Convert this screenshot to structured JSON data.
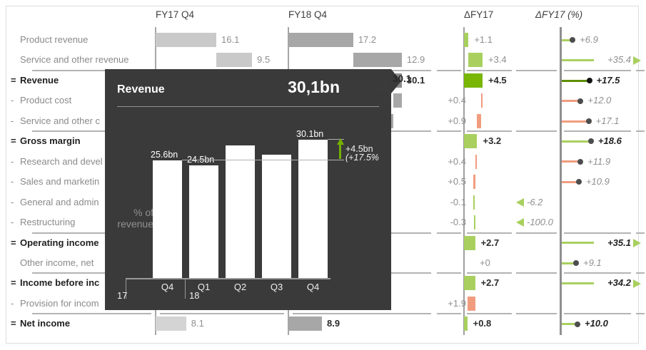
{
  "colors": {
    "light_green": "#a9d05f",
    "green_total": "#79b606",
    "dark_olive_pin": "#5e8f03",
    "salmon": "#f19c7e",
    "fy17_bar": "#c9c9c9",
    "fy17_total_bar": "#d4d4d4",
    "fy18_bar": "#a7a7a7",
    "fy18_highlight_bar": "#8c8c8c",
    "dot_gray": "#4d4d4d",
    "dot_black": "#141414",
    "arrow_green": "#76b000"
  },
  "header": {
    "fy17": "FY17 Q4",
    "fy18": "FY18 Q4",
    "delta": "ΔFY17",
    "delta_pct": "ΔFY17 (%)"
  },
  "chart_data": [
    {
      "type": "table",
      "title": "Income statement variance table (FY18 Q4 vs FY17 Q4, bn)",
      "columns": [
        "FY17 Q4",
        "FY18 Q4",
        "ΔFY17",
        "ΔFY17 (%)"
      ],
      "rows": [
        {
          "label": "Product revenue",
          "prefix": "",
          "total": false,
          "separator_above": false,
          "fy17": {
            "value": "16.1",
            "bar": [
              0,
              16.1
            ]
          },
          "fy18": {
            "value": "17.2",
            "bar": [
              0,
              17.2
            ]
          },
          "delta": {
            "value": "+1.1",
            "num": 1.1,
            "bar": [
              0,
              1.1
            ],
            "color": "light_green",
            "label_side": "right"
          },
          "pct": {
            "value": "+6.9",
            "num": 6.9,
            "style": "pin",
            "color": "light_green",
            "dot": "dot_gray"
          }
        },
        {
          "label": "Service and other revenue",
          "prefix": "",
          "total": false,
          "separator_above": false,
          "fy17": {
            "value": "9.5",
            "bar": [
              16.1,
              25.6
            ]
          },
          "fy18": {
            "value": "12.9",
            "bar": [
              17.2,
              30.1
            ]
          },
          "delta": {
            "value": "+3.4",
            "num": 3.4,
            "bar": [
              1.1,
              4.5
            ],
            "color": "light_green",
            "label_side": "right"
          },
          "pct": {
            "value": "+35.4",
            "num": 35.4,
            "style": "pin-clipped",
            "color": "light_green"
          }
        },
        {
          "label": "Revenue",
          "prefix": "=",
          "total": true,
          "separator_above": true,
          "fy17": {
            "value": "25.6",
            "bar": [
              0,
              25.6
            ]
          },
          "fy18": {
            "value": "30.1",
            "bar": [
              0,
              30.1
            ],
            "highlight": true,
            "bold": true
          },
          "delta": {
            "value": "+4.5",
            "num": 4.5,
            "bar": [
              0,
              4.5
            ],
            "color": "green_total",
            "label_side": "right",
            "bold": true
          },
          "pct": {
            "value": "+17.5",
            "num": 17.5,
            "style": "pin",
            "color": "dark_olive_pin",
            "dot": "dot_black",
            "bold": true
          }
        },
        {
          "label": "Product cost",
          "prefix": "-",
          "total": false,
          "separator_above": false,
          "fy17": null,
          "fy18": {
            "value": null,
            "bar": [
              27.8,
              30.1
            ]
          },
          "delta": {
            "value": "+0.4",
            "num": 0.4,
            "bar": [
              4.1,
              4.5
            ],
            "color": "salmon",
            "label_side": "left"
          },
          "pct": {
            "value": "+12.0",
            "num": 12.0,
            "style": "pin",
            "color": "salmon",
            "dot": "dot_gray"
          }
        },
        {
          "label": "Service and other c",
          "prefix": "-",
          "total": false,
          "separator_above": false,
          "fy17": null,
          "fy18": {
            "value": null,
            "bar": [
              20.8,
              27.8
            ]
          },
          "delta": {
            "value": "+0.9",
            "num": 0.9,
            "bar": [
              3.2,
              4.1
            ],
            "color": "salmon",
            "label_side": "left"
          },
          "pct": {
            "value": "+17.1",
            "num": 17.1,
            "style": "pin",
            "color": "salmon",
            "dot": "dot_gray"
          }
        },
        {
          "label": "Gross margin",
          "prefix": "=",
          "total": true,
          "separator_above": true,
          "fy17": null,
          "fy18": null,
          "delta": {
            "value": "+3.2",
            "num": 3.2,
            "bar": [
              0,
              3.2
            ],
            "color": "light_green",
            "label_side": "right",
            "bold": true
          },
          "pct": {
            "value": "+18.6",
            "num": 18.6,
            "style": "pin",
            "color": "light_green",
            "dot": "dot_gray",
            "bold": true
          }
        },
        {
          "label": "Research and devel",
          "prefix": "-",
          "total": false,
          "separator_above": false,
          "fy17": null,
          "fy18": null,
          "delta": {
            "value": "+0.4",
            "num": 0.4,
            "bar": [
              2.8,
              3.2
            ],
            "color": "salmon",
            "label_side": "left"
          },
          "pct": {
            "value": "+11.9",
            "num": 11.9,
            "style": "pin",
            "color": "salmon",
            "dot": "dot_gray"
          }
        },
        {
          "label": "Sales and marketin",
          "prefix": "-",
          "total": false,
          "separator_above": false,
          "fy17": null,
          "fy18": null,
          "delta": {
            "value": "+0.5",
            "num": 0.5,
            "bar": [
              2.3,
              2.8
            ],
            "color": "salmon",
            "label_side": "left"
          },
          "pct": {
            "value": "+10.9",
            "num": 10.9,
            "style": "pin",
            "color": "salmon",
            "dot": "dot_gray"
          }
        },
        {
          "label": "General and admin",
          "prefix": "-",
          "total": false,
          "separator_above": false,
          "fy17": null,
          "fy18": null,
          "delta": {
            "value": "-0.1",
            "num": -0.1,
            "bar": [
              2.3,
              2.4
            ],
            "color": "light_green",
            "label_side": "left"
          },
          "pct": {
            "value": "-6.2",
            "num": -6.2,
            "style": "neg-triangle"
          }
        },
        {
          "label": "Restructuring",
          "prefix": "-",
          "total": false,
          "separator_above": false,
          "fy17": null,
          "fy18": null,
          "delta": {
            "value": "-0.3",
            "num": -0.3,
            "bar": [
              2.4,
              2.7
            ],
            "color": "light_green",
            "label_side": "left"
          },
          "pct": {
            "value": "-100.0",
            "num": -100.0,
            "style": "neg-triangle"
          }
        },
        {
          "label": "Operating income",
          "prefix": "=",
          "total": true,
          "separator_above": true,
          "fy17": null,
          "fy18": null,
          "delta": {
            "value": "+2.7",
            "num": 2.7,
            "bar": [
              0,
              2.7
            ],
            "color": "light_green",
            "label_side": "right",
            "bold": true
          },
          "pct": {
            "value": "+35.1",
            "num": 35.1,
            "style": "pin-clipped",
            "color": "light_green",
            "bold": true
          }
        },
        {
          "label": "Other income, net",
          "prefix": "",
          "total": false,
          "separator_above": false,
          "fy17": null,
          "fy18": null,
          "delta": {
            "value": "+0",
            "num": 0,
            "bar": null,
            "label_side": "right",
            "label_x": 672
          },
          "pct": {
            "value": "+9.1",
            "num": 9.1,
            "style": "pin",
            "color": "light_green",
            "dot": "dot_gray"
          }
        },
        {
          "label": "Income before inc",
          "prefix": "=",
          "total": true,
          "separator_above": true,
          "fy17": null,
          "fy18": null,
          "delta": {
            "value": "+2.7",
            "num": 2.7,
            "bar": [
              0,
              2.7
            ],
            "color": "light_green",
            "label_side": "right",
            "bold": true
          },
          "pct": {
            "value": "+34.2",
            "num": 34.2,
            "style": "pin-clipped",
            "color": "light_green",
            "bold": true
          }
        },
        {
          "label": "Provision for incom",
          "prefix": "-",
          "total": false,
          "separator_above": false,
          "fy17": null,
          "fy18": null,
          "delta": {
            "value": "+1.9",
            "num": 1.9,
            "bar": [
              0.8,
              2.7
            ],
            "color": "salmon",
            "label_side": "left"
          },
          "pct": null
        },
        {
          "label": "Net income",
          "prefix": "=",
          "total": true,
          "separator_above": true,
          "fy17": {
            "value": "8.1",
            "bar": [
              0,
              8.1
            ],
            "total_shade": true
          },
          "fy18": {
            "value": "8.9",
            "bar": [
              0,
              8.9
            ],
            "bold": true
          },
          "delta": {
            "value": "+0.8",
            "num": 0.8,
            "bar": [
              0,
              0.8
            ],
            "color": "light_green",
            "label_side": "right",
            "bold": true
          },
          "pct": {
            "value": "+10.0",
            "num": 10.0,
            "style": "pin",
            "color": "light_green",
            "dot": "dot_gray",
            "bold": true
          }
        }
      ]
    },
    {
      "type": "bar",
      "title": "Revenue",
      "value_display": "30,1bn",
      "categories": [
        "Q4",
        "Q1",
        "Q2",
        "Q3",
        "Q4"
      ],
      "year_marks": [
        {
          "index": 0,
          "label": "17"
        },
        {
          "index": 1,
          "label": "18"
        }
      ],
      "values": [
        25.6,
        24.5,
        28.9,
        26.8,
        30.1
      ],
      "bar_labels": [
        "25.6bn",
        "24.5bn",
        "",
        "",
        "30.1bn"
      ],
      "ylabel": "% of\nrevenue",
      "annotation": {
        "line1": "+4.5bn",
        "line2": "(+17.5%"
      },
      "legend_position": "none",
      "grid": false
    }
  ],
  "tooltip": {
    "title": "Revenue",
    "value": "30,1bn",
    "ylabel_line1": "% of",
    "ylabel_line2": "revenue",
    "annotation_line1": "+4.5bn",
    "annotation_line2": "(+17.5%",
    "year_17": "17",
    "year_18": "18"
  },
  "hover": {
    "value": "30.1",
    "cursor": "pointing-hand"
  }
}
